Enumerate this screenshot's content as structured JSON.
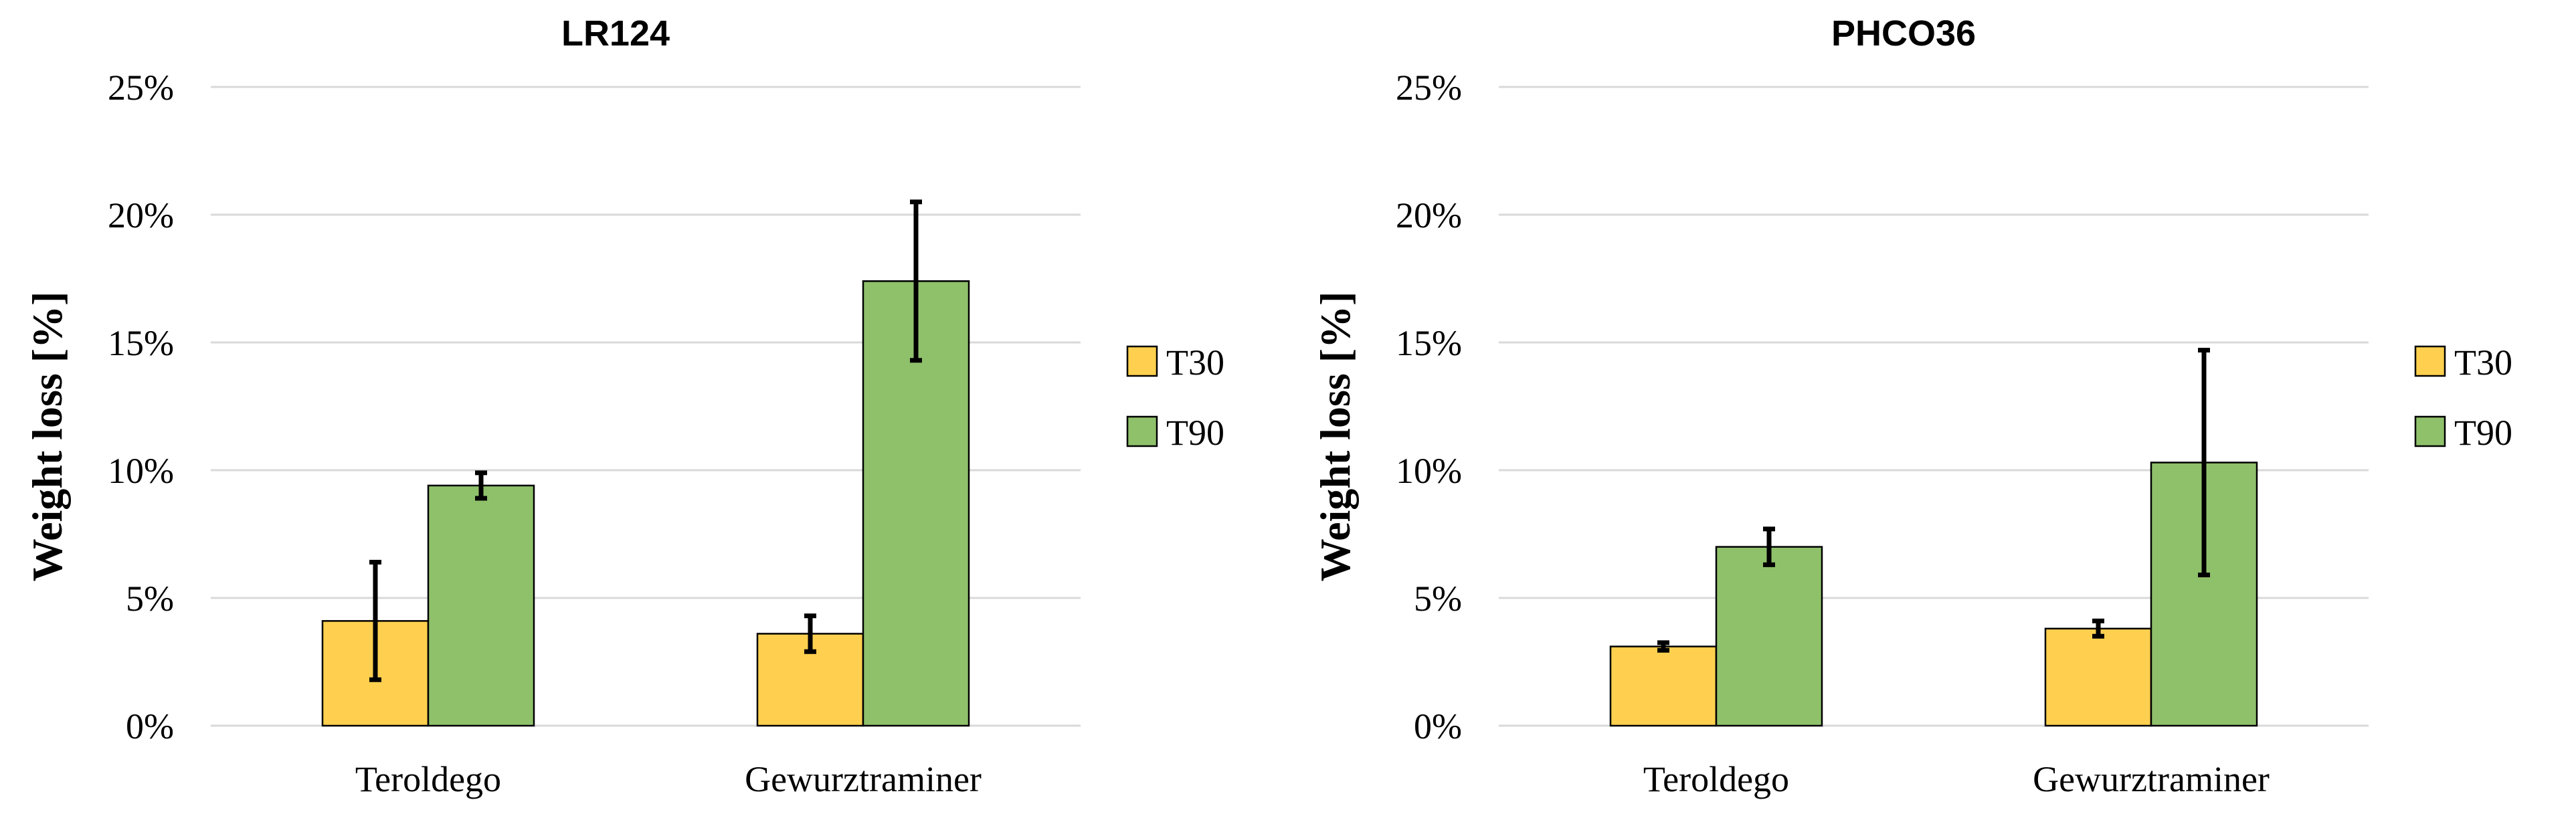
{
  "colors": {
    "T30": "#ffd04f",
    "T90": "#8fc16b"
  },
  "chart_data": [
    {
      "type": "bar",
      "title": "LR124",
      "ylabel": "Weight loss [%]",
      "ylim": [
        0,
        25
      ],
      "yticks": [
        "0%",
        "5%",
        "10%",
        "15%",
        "20%",
        "25%"
      ],
      "ytick_values": [
        0,
        5,
        10,
        15,
        20,
        25
      ],
      "grid": true,
      "legend_position": "right",
      "categories": [
        "Teroldego",
        "Gewurztraminer"
      ],
      "series": [
        {
          "name": "T30",
          "values": [
            4.1,
            3.6
          ],
          "error": [
            2.3,
            0.7
          ]
        },
        {
          "name": "T90",
          "values": [
            9.4,
            17.4
          ],
          "error": [
            0.5,
            3.1
          ]
        }
      ]
    },
    {
      "type": "bar",
      "title": "PHCO36",
      "ylabel": "Weight loss [%]",
      "ylim": [
        0,
        25
      ],
      "yticks": [
        "0%",
        "5%",
        "10%",
        "15%",
        "20%",
        "25%"
      ],
      "ytick_values": [
        0,
        5,
        10,
        15,
        20,
        25
      ],
      "grid": true,
      "legend_position": "right",
      "categories": [
        "Teroldego",
        "Gewurztraminer"
      ],
      "series": [
        {
          "name": "T30",
          "values": [
            3.1,
            3.8
          ],
          "error": [
            0.15,
            0.3
          ]
        },
        {
          "name": "T90",
          "values": [
            7.0,
            10.3
          ],
          "error": [
            0.7,
            4.4
          ]
        }
      ]
    }
  ]
}
